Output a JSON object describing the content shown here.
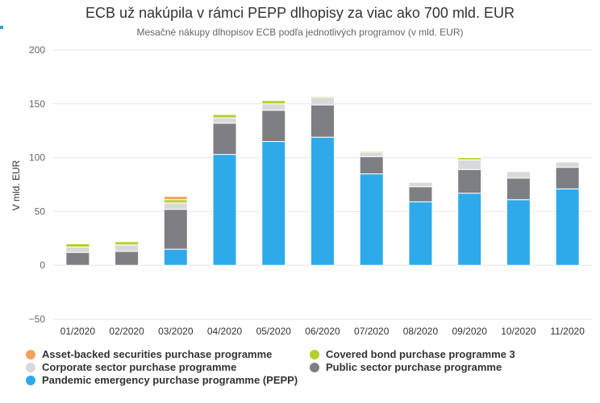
{
  "chart_data": {
    "type": "bar",
    "stacked": true,
    "title": "ECB už nakúpila v rámci PEPP dlhopisy za viac ako 700 mld. EUR",
    "subtitle": "Mesačné nákupy dlhopisov ECB podľa jednotlivých programov (v mld. EUR)",
    "xlabel": "",
    "ylabel": "V mld. EUR",
    "ylim": [
      -50,
      200
    ],
    "yticks": [
      -50,
      0,
      50,
      100,
      150,
      200
    ],
    "grid": true,
    "legend_position": "bottom",
    "categories": [
      "01/2020",
      "02/2020",
      "03/2020",
      "04/2020",
      "05/2020",
      "06/2020",
      "07/2020",
      "08/2020",
      "09/2020",
      "10/2020",
      "11/2020"
    ],
    "series": [
      {
        "name": "Pandemic emergency purchase programme (PEPP)",
        "color": "#2eaaeb",
        "values": [
          0,
          0,
          15,
          103,
          115,
          119,
          85,
          59,
          67,
          61,
          71
        ]
      },
      {
        "name": "Public sector purchase programme",
        "color": "#7d7f82",
        "values": [
          12,
          13,
          37,
          29,
          29,
          30,
          16,
          14,
          22,
          20,
          20
        ]
      },
      {
        "name": "Corporate sector purchase programme",
        "color": "#d8d9da",
        "values": [
          5,
          6,
          6,
          5,
          6,
          7,
          4,
          4,
          9,
          6,
          5
        ]
      },
      {
        "name": "Covered bond purchase programme 3",
        "color": "#b6cf2e",
        "values": [
          3,
          3,
          3,
          3,
          3,
          1,
          1,
          0,
          2,
          0,
          0
        ]
      },
      {
        "name": "Asset-backed securities purchase programme",
        "color": "#f2a35c",
        "values": [
          0,
          0,
          3,
          0,
          0,
          0,
          0,
          0,
          0,
          0,
          0
        ]
      }
    ]
  },
  "legend": {
    "items": [
      {
        "name": "Asset-backed securities purchase programme",
        "color": "#f2a35c"
      },
      {
        "name": "Covered bond purchase programme 3",
        "color": "#b6cf2e"
      },
      {
        "name": "Corporate sector purchase programme",
        "color": "#d8d9da"
      },
      {
        "name": "Public sector purchase programme",
        "color": "#7d7f82"
      },
      {
        "name": "Pandemic emergency purchase programme (PEPP)",
        "color": "#2eaaeb"
      }
    ]
  }
}
